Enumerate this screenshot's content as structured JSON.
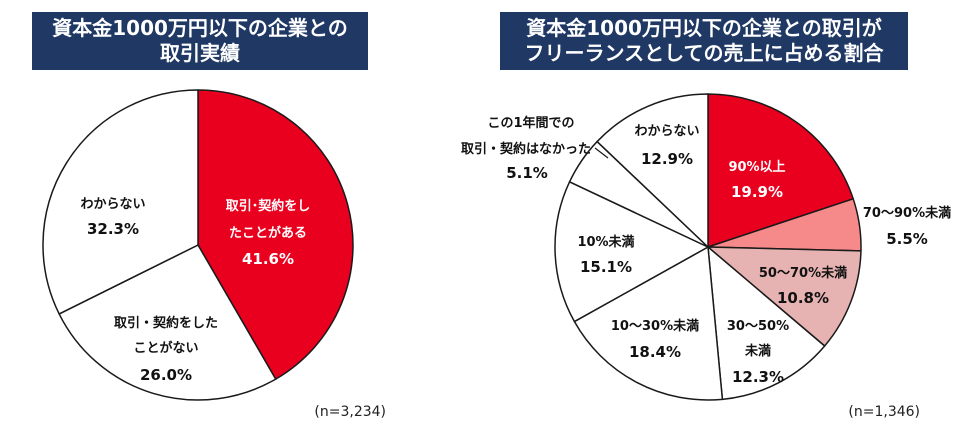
{
  "colors": {
    "title_bg": "#1f3864",
    "slice_border": "#1a1a1a"
  },
  "chart_data": [
    {
      "type": "pie",
      "title_lines": [
        "資本金1000万円以下の企業との",
        "取引実績"
      ],
      "unit": "%",
      "n_label": "(n=3,234)",
      "slices": [
        {
          "label_lines": [
            "取引･契約をし",
            "たことがある"
          ],
          "value": 41.6,
          "color": "#e9001f"
        },
        {
          "label_lines": [
            "取引・契約をした",
            "ことがない"
          ],
          "value": 26.0,
          "color": "#ffffff"
        },
        {
          "label_lines": [
            "わからない"
          ],
          "value": 32.3,
          "color": "#ffffff"
        }
      ]
    },
    {
      "type": "pie",
      "title_lines": [
        "資本金1000万円以下の企業との取引が",
        "フリーランスとしての売上に占める割合"
      ],
      "unit": "%",
      "n_label": "(n=1,346)",
      "slices": [
        {
          "label_lines": [
            "90%以上"
          ],
          "value": 19.9,
          "color": "#e9001f"
        },
        {
          "label_lines": [
            "70～90%未満"
          ],
          "value": 5.5,
          "color": "#f68a8a"
        },
        {
          "label_lines": [
            "50～70%未満"
          ],
          "value": 10.8,
          "color": "#e6b2b2"
        },
        {
          "label_lines": [
            "30～50%",
            "未満"
          ],
          "value": 12.3,
          "color": "#ffffff"
        },
        {
          "label_lines": [
            "10～30%未満"
          ],
          "value": 18.4,
          "color": "#ffffff"
        },
        {
          "label_lines": [
            "10%未満"
          ],
          "value": 15.1,
          "color": "#ffffff"
        },
        {
          "label_lines": [
            "この1年間での",
            "取引・契約はなかった"
          ],
          "value": 5.1,
          "color": "#ffffff"
        },
        {
          "label_lines": [
            "わからない"
          ],
          "value": 12.9,
          "color": "#ffffff"
        }
      ]
    }
  ]
}
